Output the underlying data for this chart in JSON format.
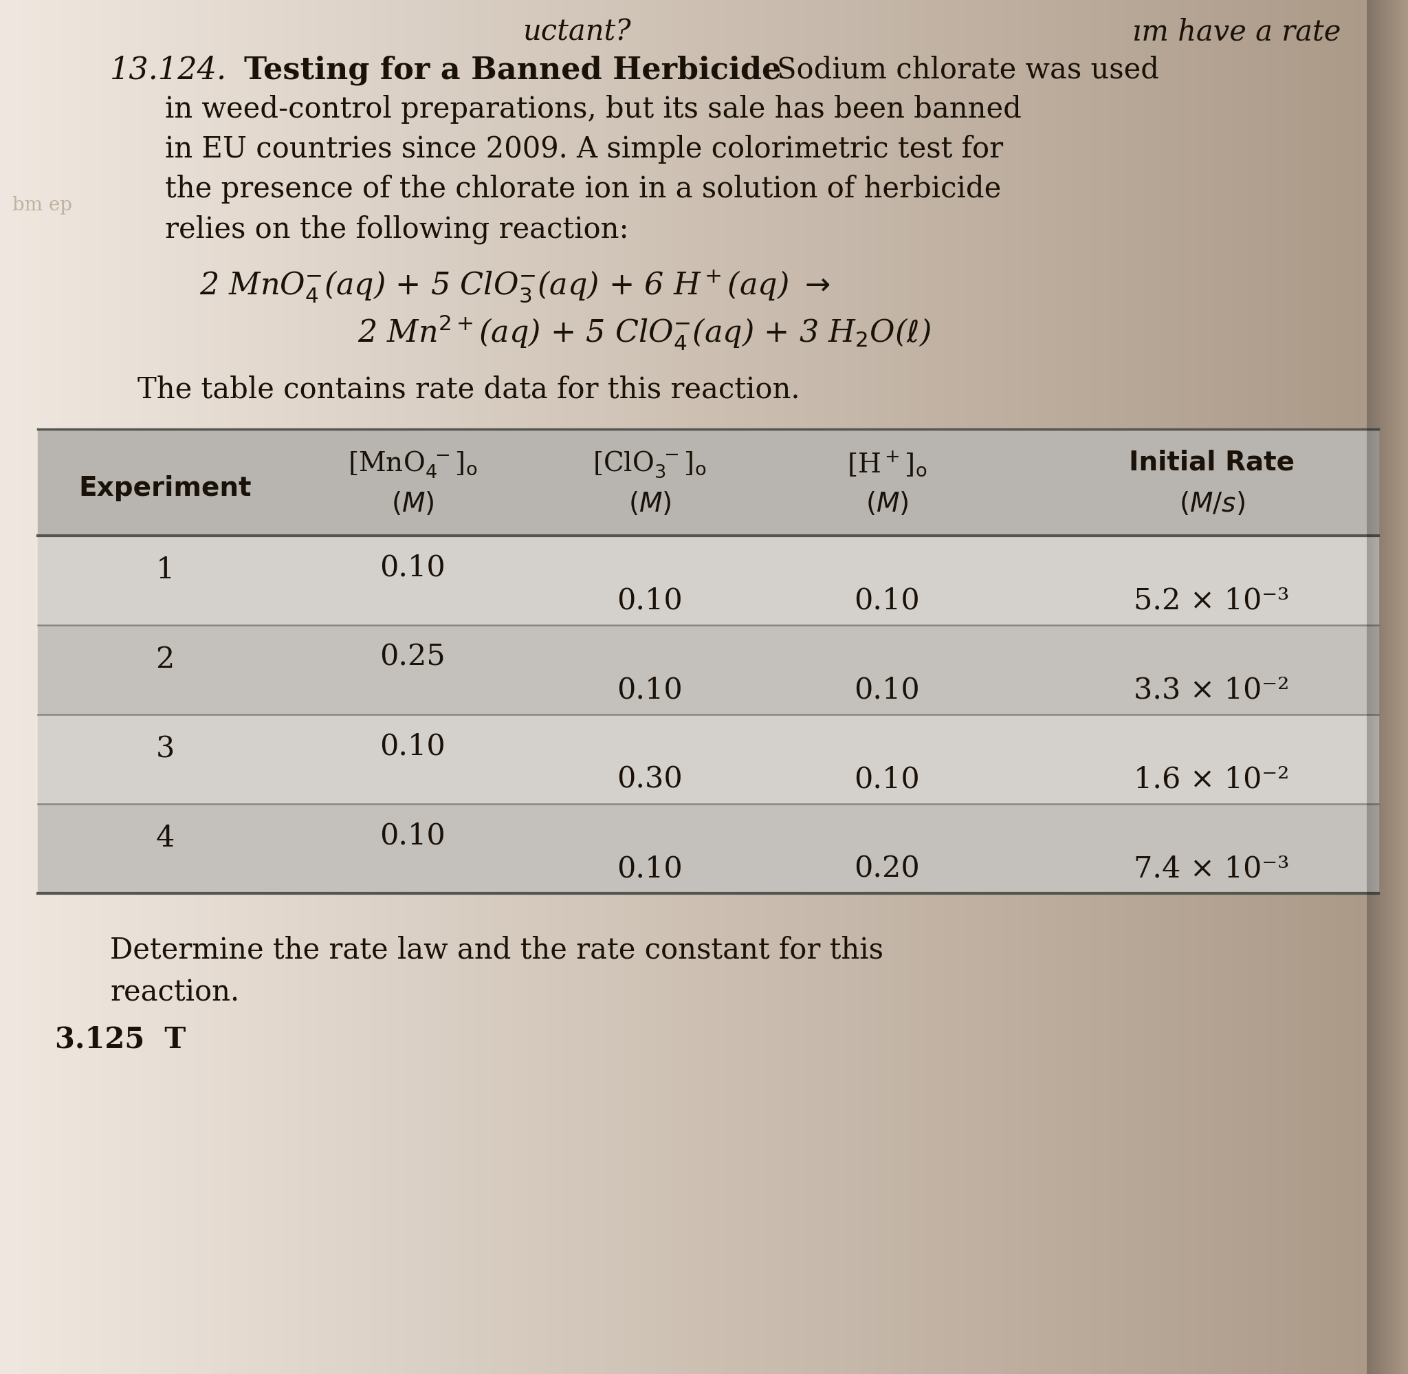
{
  "page_bg_left": "#f0e8e0",
  "page_bg_right": "#c8b8a8",
  "table_header_bg": "#b8b4b0",
  "table_row1_bg": "#d0cbc6",
  "table_row2_bg": "#c0bbb6",
  "text_color": "#1a1208",
  "line_color": "#888880",
  "top_right_text": "have a rate",
  "top_right_partial": "ım have a rate",
  "problem_number": "13.124.",
  "problem_title": "Testing for a Banned Herbicide",
  "title_continuation": "Sodium chlorate was used",
  "line2": "in weed-control preparations, but its sale has been banned",
  "line3": "in EU countries since 2009. A simple colorimetric test for",
  "line4": "the presence of the chlorate ion in a solution of herbicide",
  "line5": "relies on the following reaction:",
  "table_intro": "The table contains rate data for this reaction.",
  "footer_line1": "Determine the rate law and the rate constant for this",
  "footer_line2": "reaction.",
  "footer_next": "3.125  T",
  "rows": [
    [
      "1",
      "0.10",
      "0.10",
      "0.10",
      "5.2 × 10⁻³"
    ],
    [
      "2",
      "0.25",
      "0.10",
      "0.10",
      "3.3 × 10⁻²"
    ],
    [
      "3",
      "0.10",
      "0.30",
      "0.10",
      "1.6 × 10⁻²"
    ],
    [
      "4",
      "0.10",
      "0.10",
      "0.20",
      "7.4 × 10⁻³"
    ]
  ]
}
